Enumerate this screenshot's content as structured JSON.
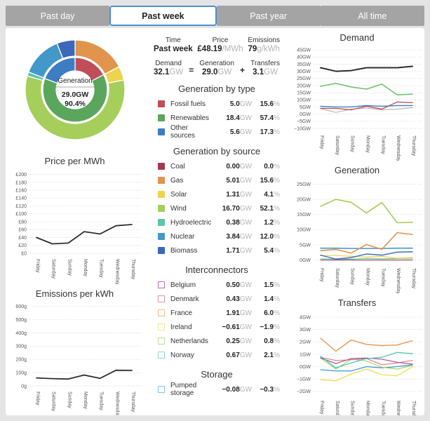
{
  "tabs": [
    {
      "label": "Past day",
      "selected": false
    },
    {
      "label": "Past week",
      "selected": true
    },
    {
      "label": "Past year",
      "selected": false
    },
    {
      "label": "All time",
      "selected": false
    }
  ],
  "stats": {
    "time_label": "Time",
    "time_value": "Past week",
    "price_label": "Price",
    "price_value": "£48.19",
    "price_unit": "/MWh",
    "emissions_label": "Emissions",
    "emissions_value": "79",
    "emissions_unit": "g/kWh",
    "demand_label": "Demand",
    "demand_value": "32.1",
    "demand_unit": "GW",
    "equals": "=",
    "plus": "+",
    "generation_label": "Generation",
    "generation_value": "29.0",
    "generation_unit": "GW",
    "transfers_label": "Transfers",
    "transfers_value": "3.1",
    "transfers_unit": "GW"
  },
  "donut": {
    "center_title": "Generation",
    "center_value": "29.0GW",
    "center_pct": "90.4%",
    "inner": [
      {
        "name": "Fossil fuels",
        "value": 5.0,
        "color": "#bf4d5a"
      },
      {
        "name": "Renewables",
        "value": 18.4,
        "color": "#5aa65c"
      },
      {
        "name": "Other sources",
        "value": 5.6,
        "color": "#3d7dc4"
      }
    ],
    "outer": [
      {
        "name": "Coal",
        "value": 0.0,
        "color": "#a23b52"
      },
      {
        "name": "Gas",
        "value": 5.01,
        "color": "#e0944e"
      },
      {
        "name": "Solar",
        "value": 1.31,
        "color": "#ecd44e"
      },
      {
        "name": "Wind",
        "value": 16.7,
        "color": "#a6ce5b"
      },
      {
        "name": "Hydroelectric",
        "value": 0.38,
        "color": "#5cc6ad"
      },
      {
        "name": "Nuclear",
        "value": 3.84,
        "color": "#4397c9"
      },
      {
        "name": "Biomass",
        "value": 1.71,
        "color": "#3c68ba"
      }
    ]
  },
  "sections": [
    {
      "title": "Generation by type",
      "rows": [
        {
          "label": "Fossil fuels",
          "color": "#bf4d5a",
          "outline": false,
          "value": "5.0",
          "unit": "GW",
          "pct": "15.6",
          "pct_unit": "%"
        },
        {
          "label": "Renewables",
          "color": "#5aa65c",
          "outline": false,
          "value": "18.4",
          "unit": "GW",
          "pct": "57.4",
          "pct_unit": "%"
        },
        {
          "label": "Other sources",
          "color": "#3d7dc4",
          "outline": false,
          "value": "5.6",
          "unit": "GW",
          "pct": "17.3",
          "pct_unit": "%"
        }
      ]
    },
    {
      "title": "Generation by source",
      "rows": [
        {
          "label": "Coal",
          "color": "#a23b52",
          "outline": false,
          "value": "0.00",
          "unit": "GW",
          "pct": "0.0",
          "pct_unit": "%"
        },
        {
          "label": "Gas",
          "color": "#e0944e",
          "outline": false,
          "value": "5.01",
          "unit": "GW",
          "pct": "15.6",
          "pct_unit": "%"
        },
        {
          "label": "Solar",
          "color": "#ecd44e",
          "outline": false,
          "value": "1.31",
          "unit": "GW",
          "pct": "4.1",
          "pct_unit": "%"
        },
        {
          "label": "Wind",
          "color": "#a6ce5b",
          "outline": false,
          "value": "16.70",
          "unit": "GW",
          "pct": "52.1",
          "pct_unit": "%"
        },
        {
          "label": "Hydroelectric",
          "color": "#5cc6ad",
          "outline": false,
          "value": "0.38",
          "unit": "GW",
          "pct": "1.2",
          "pct_unit": "%"
        },
        {
          "label": "Nuclear",
          "color": "#4397c9",
          "outline": false,
          "value": "3.84",
          "unit": "GW",
          "pct": "12.0",
          "pct_unit": "%"
        },
        {
          "label": "Biomass",
          "color": "#3c68ba",
          "outline": false,
          "value": "1.71",
          "unit": "GW",
          "pct": "5.4",
          "pct_unit": "%"
        }
      ]
    },
    {
      "title": "Interconnectors",
      "rows": [
        {
          "label": "Belgium",
          "color": "#c069b3",
          "outline": true,
          "value": "0.50",
          "unit": "GW",
          "pct": "1.5",
          "pct_unit": "%"
        },
        {
          "label": "Denmark",
          "color": "#e89193",
          "outline": true,
          "value": "0.43",
          "unit": "GW",
          "pct": "1.4",
          "pct_unit": "%"
        },
        {
          "label": "France",
          "color": "#eebd86",
          "outline": true,
          "value": "1.91",
          "unit": "GW",
          "pct": "6.0",
          "pct_unit": "%"
        },
        {
          "label": "Ireland",
          "color": "#efe98a",
          "outline": true,
          "value": "−0.61",
          "unit": "GW",
          "pct": "−1.9",
          "pct_unit": "%"
        },
        {
          "label": "Netherlands",
          "color": "#bce095",
          "outline": true,
          "value": "0.25",
          "unit": "GW",
          "pct": "0.8",
          "pct_unit": "%"
        },
        {
          "label": "Norway",
          "color": "#8bdacb",
          "outline": true,
          "value": "0.67",
          "unit": "GW",
          "pct": "2.1",
          "pct_unit": "%"
        }
      ]
    },
    {
      "title": "Storage",
      "rows": [
        {
          "label": "Pumped storage",
          "color": "#7fc0e8",
          "outline": true,
          "value": "−0.08",
          "unit": "GW",
          "pct": "−0.3",
          "pct_unit": "%"
        }
      ]
    }
  ],
  "chart_data": [
    {
      "type": "line",
      "title": "Price per MWh",
      "categories": [
        "Friday",
        "Saturday",
        "Sunday",
        "Monday",
        "Tuesday",
        "Wednesday",
        "Thursday"
      ],
      "ylim": [
        0,
        210
      ],
      "yticks": [
        0,
        20,
        40,
        60,
        80,
        100,
        120,
        140,
        160,
        180,
        200
      ],
      "yprefix": "£",
      "ysuffix": "",
      "grid": true,
      "legend_position": "none",
      "series": [
        {
          "name": "Price",
          "color": "#2e2e2e",
          "width": 1.8,
          "values": [
            40,
            24,
            26,
            55,
            49,
            70,
            73
          ]
        }
      ]
    },
    {
      "type": "line",
      "title": "Emissions per kWh",
      "categories": [
        "Friday",
        "Saturday",
        "Sunday",
        "Monday",
        "Tuesday",
        "Wednesday",
        "Thursday"
      ],
      "ylim": [
        0,
        624
      ],
      "yticks": [
        0,
        100,
        200,
        300,
        400,
        500,
        600
      ],
      "yprefix": "",
      "ysuffix": "g",
      "grid": true,
      "legend_position": "none",
      "series": [
        {
          "name": "Emissions",
          "color": "#2e2e2e",
          "width": 1.8,
          "values": [
            60,
            55,
            52,
            82,
            57,
            118,
            117
          ]
        }
      ]
    },
    {
      "type": "line",
      "title": "Demand",
      "categories": [
        "Friday",
        "Saturday",
        "Sunday",
        "Monday",
        "Tuesday",
        "Wednesday",
        "Thursday"
      ],
      "ylim": [
        -11,
        47
      ],
      "yticks": [
        -10,
        -5,
        0,
        5,
        10,
        15,
        20,
        25,
        30,
        35,
        40,
        45
      ],
      "yprefix": "",
      "ysuffix": "GW",
      "grid": true,
      "legend_position": "none",
      "series": [
        {
          "name": "Transfers",
          "color": "#b9b9b9",
          "width": 1.2,
          "values": [
            3.8,
            1.2,
            3.5,
            4.2,
            3.0,
            3.5,
            4.5
          ]
        },
        {
          "name": "Fossil fuels",
          "color": "#c84f5a",
          "width": 1.4,
          "values": [
            4.0,
            4.0,
            3.0,
            5.5,
            3.5,
            8.5,
            8.0
          ]
        },
        {
          "name": "Other sources",
          "color": "#3e7fc8",
          "width": 1.4,
          "values": [
            5.5,
            5.0,
            5.0,
            6.0,
            5.5,
            6.0,
            6.0
          ]
        },
        {
          "name": "Renewables",
          "color": "#74c06e",
          "width": 1.6,
          "values": [
            19.5,
            21.5,
            19.0,
            17.5,
            21.0,
            13.5,
            14.0
          ]
        },
        {
          "name": "Demand",
          "color": "#2e2e2e",
          "width": 2.0,
          "values": [
            32.5,
            30.0,
            30.5,
            32.5,
            32.5,
            32.5,
            33.5
          ]
        }
      ]
    },
    {
      "type": "line",
      "title": "Generation",
      "categories": [
        "Friday",
        "Saturday",
        "Sunday",
        "Monday",
        "Tuesday",
        "Wednesday",
        "Thursday"
      ],
      "ylim": [
        -0.8,
        26.5
      ],
      "yticks": [
        0,
        5,
        10,
        15,
        20,
        25
      ],
      "yprefix": "",
      "ysuffix": "GW",
      "grid": true,
      "legend_position": "none",
      "series": [
        {
          "name": "Coal",
          "color": "#a23b52",
          "width": 1.2,
          "values": [
            0,
            0,
            0,
            0,
            0,
            0,
            0
          ]
        },
        {
          "name": "Hydroelectric",
          "color": "#5cc6ad",
          "width": 1.2,
          "values": [
            0.4,
            0.3,
            0.3,
            0.5,
            0.4,
            0.5,
            0.6
          ]
        },
        {
          "name": "Solar",
          "color": "#ecd44e",
          "width": 1.2,
          "values": [
            1.4,
            1.5,
            1.2,
            1.0,
            1.2,
            0.6,
            0.8
          ]
        },
        {
          "name": "Biomass",
          "color": "#3c68ba",
          "width": 1.4,
          "values": [
            1.6,
            0.3,
            0.8,
            2.0,
            1.6,
            2.6,
            2.7
          ]
        },
        {
          "name": "Nuclear",
          "color": "#4397c9",
          "width": 1.6,
          "values": [
            3.9,
            3.9,
            3.8,
            3.8,
            3.8,
            3.9,
            3.9
          ]
        },
        {
          "name": "Gas",
          "color": "#e0944e",
          "width": 1.6,
          "values": [
            3.1,
            3.5,
            2.3,
            5.1,
            3.5,
            9.0,
            8.4
          ]
        },
        {
          "name": "Wind",
          "color": "#a6ce5b",
          "width": 1.6,
          "values": [
            17.7,
            20.0,
            19.0,
            15.5,
            19.0,
            12.3,
            12.4
          ]
        }
      ]
    },
    {
      "type": "line",
      "title": "Transfers",
      "categories": [
        "Friday",
        "Saturday",
        "Sunday",
        "Monday",
        "Tuesday",
        "Wednesday",
        "Thursday"
      ],
      "ylim": [
        -2.3,
        4.4
      ],
      "yticks": [
        -2,
        -1,
        0,
        1,
        2,
        3,
        4
      ],
      "yprefix": "",
      "ysuffix": "GW",
      "grid": true,
      "legend_position": "none",
      "series": [
        {
          "name": "Pumped storage",
          "color": "#3d97d0",
          "width": 1.2,
          "values": [
            -0.25,
            -0.35,
            -0.35,
            0.0,
            -0.1,
            0.0,
            0.15
          ]
        },
        {
          "name": "Ireland",
          "color": "#e9dc3f",
          "width": 1.2,
          "values": [
            -1.05,
            -1.15,
            -0.6,
            -0.2,
            -0.65,
            -0.75,
            0.0
          ]
        },
        {
          "name": "Netherlands",
          "color": "#a2d468",
          "width": 1.2,
          "values": [
            0.7,
            -0.2,
            0.6,
            0.45,
            -0.05,
            -0.2,
            0.1
          ]
        },
        {
          "name": "Denmark",
          "color": "#dd7e82",
          "width": 1.2,
          "values": [
            0.75,
            0.5,
            0.55,
            0.65,
            0.15,
            0.3,
            0.5
          ]
        },
        {
          "name": "Belgium",
          "color": "#a84f9e",
          "width": 1.2,
          "values": [
            0.7,
            0.25,
            0.65,
            0.7,
            0.6,
            0.35,
            0.2
          ]
        },
        {
          "name": "Norway",
          "color": "#45c4b1",
          "width": 1.2,
          "values": [
            0.85,
            -0.1,
            0.3,
            0.65,
            0.75,
            1.15,
            1.05
          ]
        },
        {
          "name": "France",
          "color": "#e8964c",
          "width": 1.4,
          "values": [
            2.3,
            1.25,
            2.15,
            1.8,
            1.7,
            1.75,
            2.1
          ]
        }
      ]
    }
  ]
}
